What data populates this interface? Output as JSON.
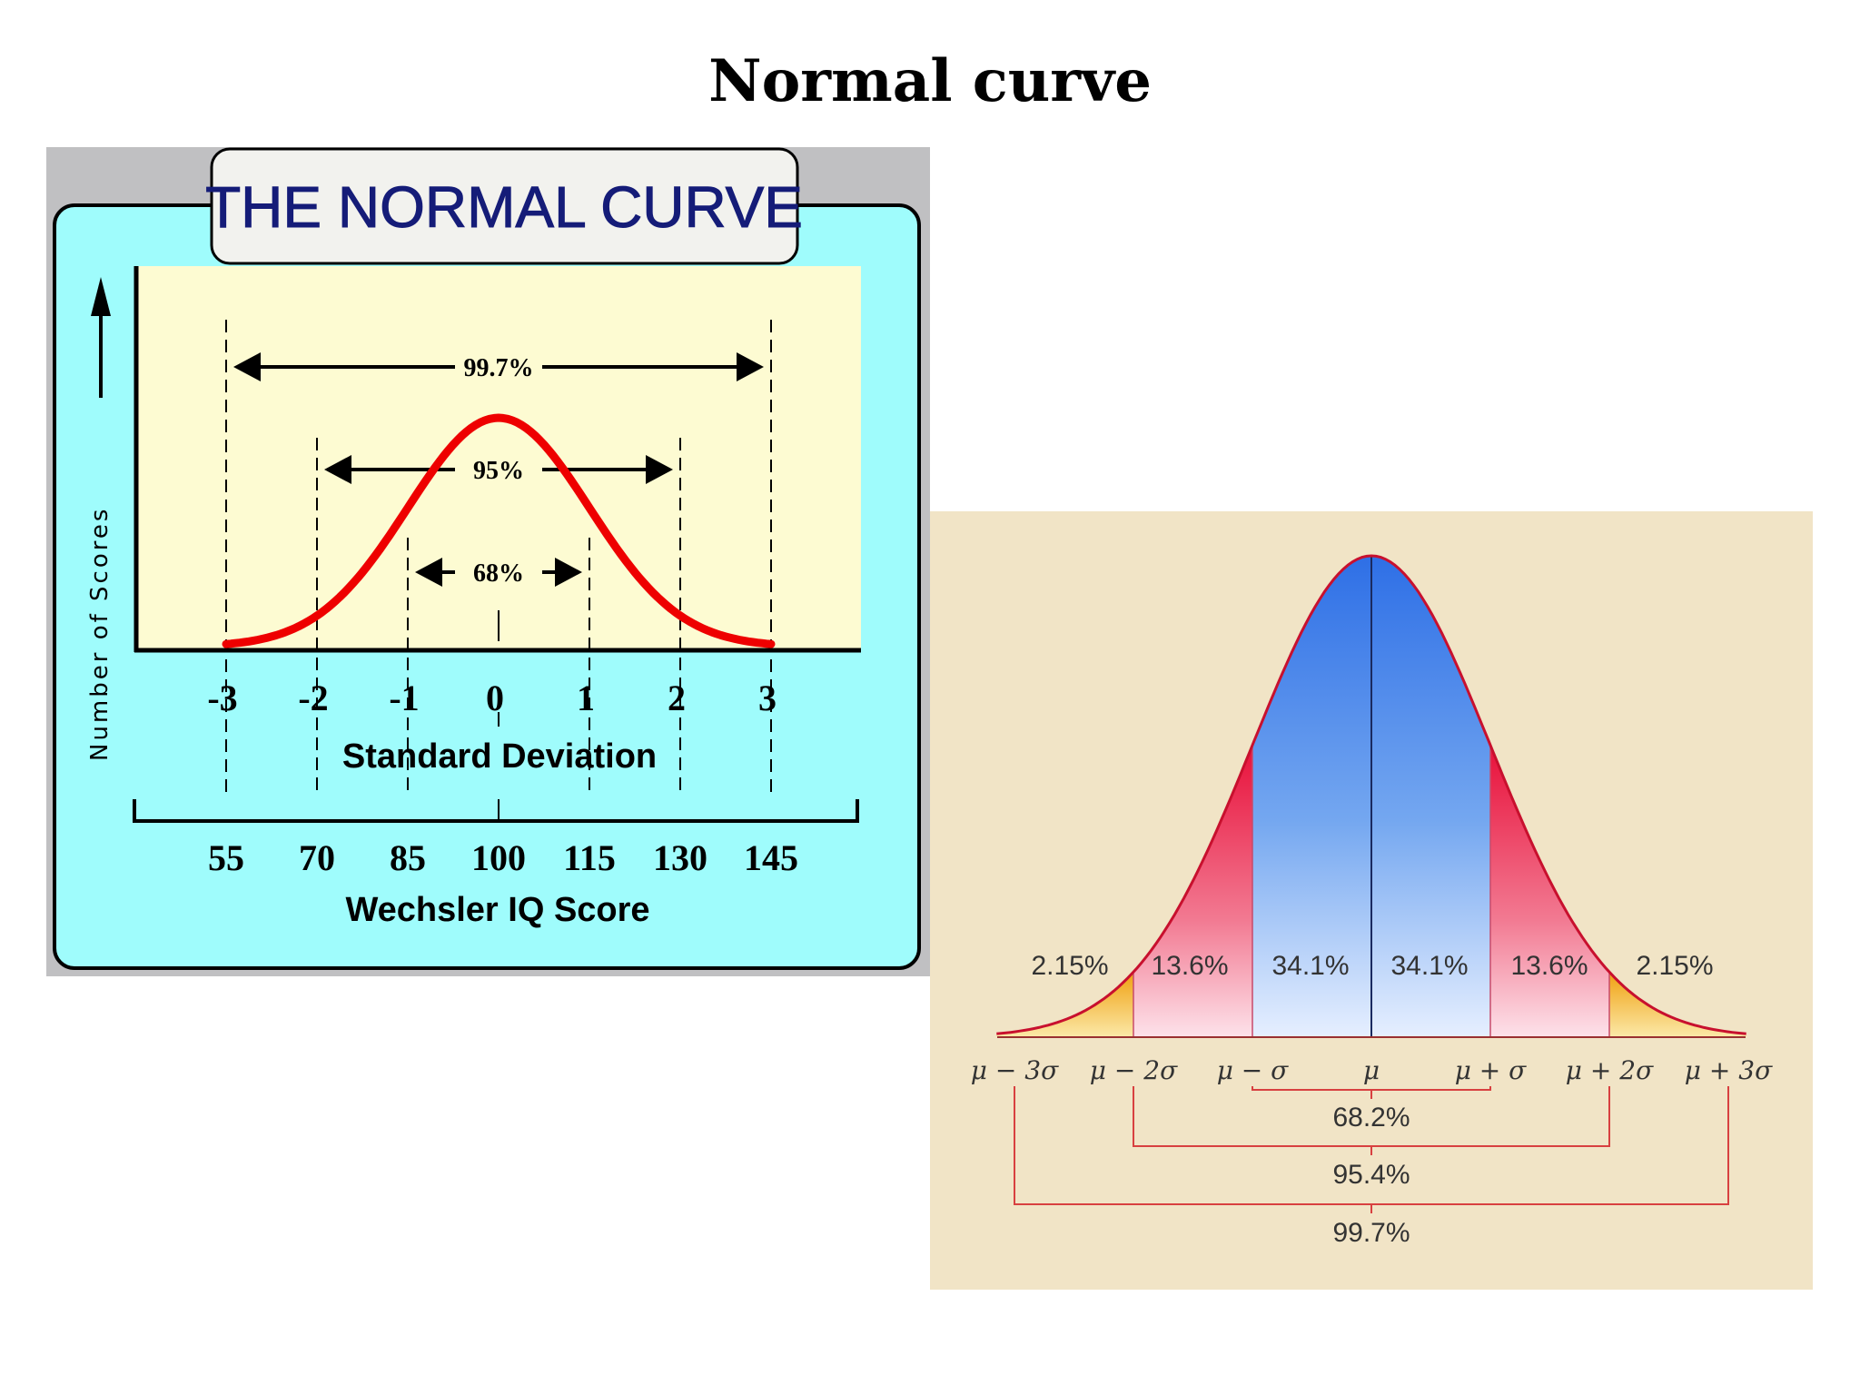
{
  "slide": {
    "title": "Normal curve"
  },
  "colors": {
    "panel_bg": "#9ffcfc",
    "plot_bg": "#fdfbd2",
    "curve_red": "#ee0000",
    "bell_blue": "#2f74e8",
    "bell_red": "#e8103a",
    "bell_orange": "#f2b020",
    "paper_bg": "#f1e4c6",
    "bracket_red": "#d84040"
  },
  "chart_data": [
    {
      "type": "line",
      "title": "THE NORMAL CURVE",
      "xlabel": "Standard Deviation",
      "xlabel2": "Wechsler IQ Score",
      "ylabel": "Number of Scores",
      "x_ticks": [
        "-3",
        "-2",
        "-1",
        "0",
        "1",
        "2",
        "3"
      ],
      "x_values": [
        -3,
        -2,
        -1,
        0,
        1,
        2,
        3
      ],
      "iq_ticks": [
        "55",
        "70",
        "85",
        "100",
        "115",
        "130",
        "145"
      ],
      "xlim": [
        -3,
        3
      ],
      "series": [
        {
          "x": [
            -3,
            -2.5,
            -2,
            -1.5,
            -1,
            -0.5,
            0,
            0.5,
            1,
            1.5,
            2,
            2.5,
            3
          ],
          "y": [
            0.0044,
            0.0175,
            0.054,
            0.1295,
            0.242,
            0.352,
            0.399,
            0.352,
            0.242,
            0.1295,
            0.054,
            0.0175,
            0.0044
          ]
        }
      ],
      "ranges": [
        {
          "label": "99.7%",
          "from": -3,
          "to": 3
        },
        {
          "label": "95%",
          "from": -2,
          "to": 2
        },
        {
          "label": "68%",
          "from": -1,
          "to": 1
        }
      ],
      "grid": false,
      "legend": "none"
    },
    {
      "type": "area",
      "categories": [
        "μ − 3σ",
        "μ − 2σ",
        "μ − σ",
        "μ",
        "μ + σ",
        "μ + 2σ",
        "μ + 3σ"
      ],
      "x_values": [
        -3,
        -2,
        -1,
        0,
        1,
        2,
        3
      ],
      "xlim": [
        -3.15,
        3.15
      ],
      "segments": [
        {
          "from": -3.15,
          "to": -2,
          "label": "2.15%"
        },
        {
          "from": -2,
          "to": -1,
          "label": "13.6%"
        },
        {
          "from": -1,
          "to": 0,
          "label": "34.1%"
        },
        {
          "from": 0,
          "to": 1,
          "label": "34.1%"
        },
        {
          "from": 1,
          "to": 2,
          "label": "13.6%"
        },
        {
          "from": 2,
          "to": 3.15,
          "label": "2.15%"
        }
      ],
      "brackets": [
        {
          "from": -1,
          "to": 1,
          "label": "68.2%"
        },
        {
          "from": -2,
          "to": 2,
          "label": "95.4%"
        },
        {
          "from": -3,
          "to": 3,
          "label": "99.7%"
        }
      ],
      "grid": false,
      "legend": "none"
    }
  ]
}
